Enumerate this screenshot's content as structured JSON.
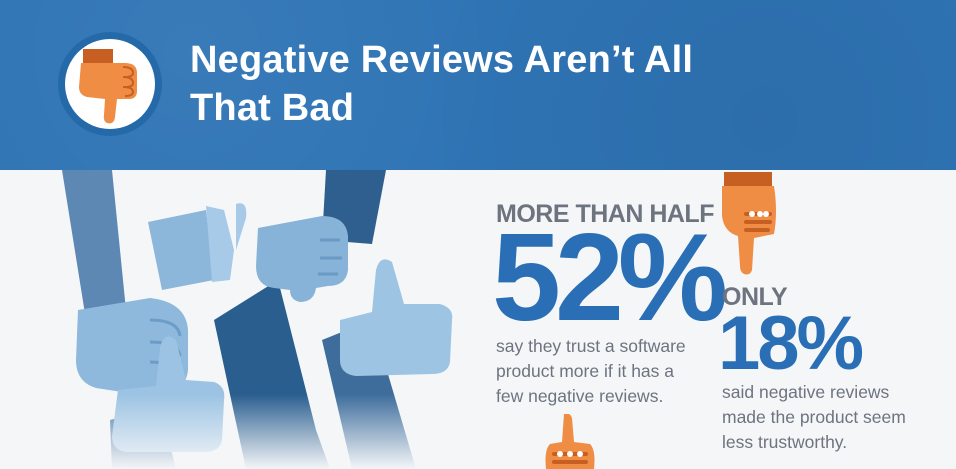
{
  "header": {
    "title_line1": "Negative Reviews Aren’t All",
    "title_line2": "That Bad",
    "icon": "thumbs-down-icon"
  },
  "stat_1": {
    "label": "MORE THAN HALF",
    "value": "52%",
    "desc_lines": [
      "say they trust a software",
      "product more if it has a",
      "few negative reviews."
    ]
  },
  "stat_2": {
    "label": "ONLY",
    "value": "18%",
    "desc_lines": [
      "said negative reviews",
      "made the product seem",
      "less trustworthy."
    ]
  },
  "colors": {
    "header": "#2f74b5",
    "accent_blue": "#2a6fb5",
    "hand_orange": "#e8833a",
    "text_gray": "#6d7480"
  }
}
